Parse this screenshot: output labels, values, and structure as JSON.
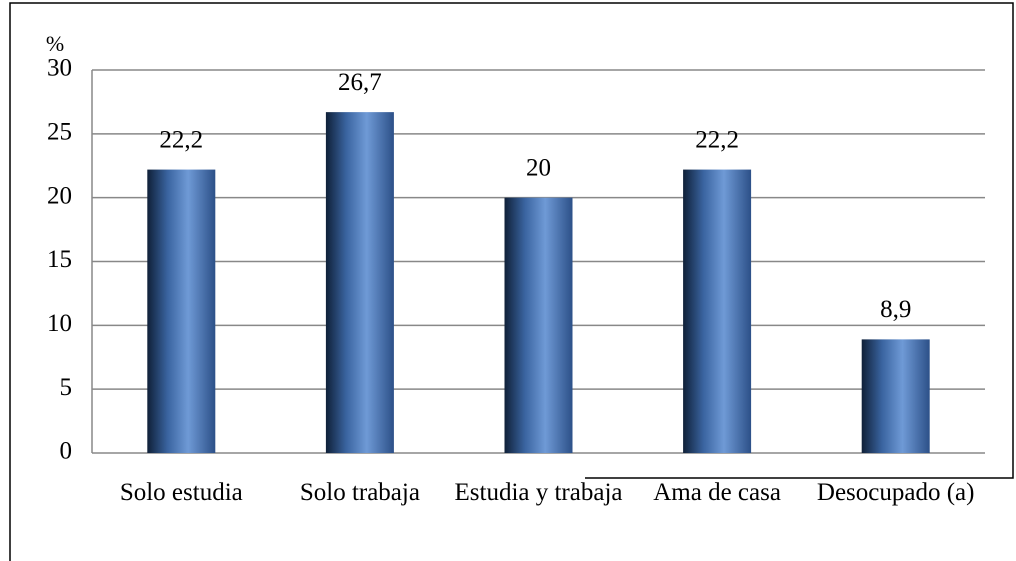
{
  "chart_data": {
    "type": "bar",
    "y_label": "%",
    "categories": [
      "Solo estudia",
      "Solo trabaja",
      "Estudia y trabaja",
      "Ama de casa",
      "Desocupado (a)"
    ],
    "values": [
      22.2,
      26.7,
      20,
      22.2,
      8.9
    ],
    "value_labels": [
      "22,2",
      "26,7",
      "20",
      "22,2",
      "8,9"
    ],
    "color": "#3f6fb0",
    "ylim": [
      0,
      30
    ],
    "yticks": [
      0,
      5,
      10,
      15,
      20,
      25,
      30
    ],
    "grid": true
  }
}
